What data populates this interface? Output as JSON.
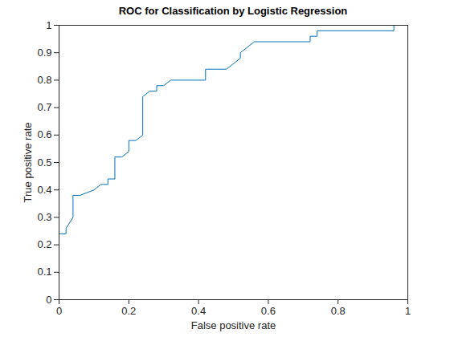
{
  "chart_data": {
    "type": "line",
    "title": "ROC for Classification by Logistic Regression",
    "x_label": "False positive rate",
    "y_label": "True positive rate",
    "x": [
      0,
      0,
      0.02,
      0.02,
      0.04,
      0.04,
      0.06,
      0.1,
      0.12,
      0.14,
      0.14,
      0.16,
      0.16,
      0.18,
      0.2,
      0.2,
      0.22,
      0.24,
      0.24,
      0.26,
      0.28,
      0.28,
      0.3,
      0.32,
      0.42,
      0.42,
      0.48,
      0.52,
      0.52,
      0.56,
      0.72,
      0.72,
      0.74,
      0.74,
      0.96,
      0.96,
      1
    ],
    "values": [
      0,
      0.24,
      0.24,
      0.26,
      0.3,
      0.38,
      0.38,
      0.4,
      0.42,
      0.42,
      0.44,
      0.44,
      0.52,
      0.52,
      0.54,
      0.58,
      0.58,
      0.6,
      0.74,
      0.76,
      0.76,
      0.78,
      0.78,
      0.8,
      0.8,
      0.84,
      0.84,
      0.88,
      0.9,
      0.94,
      0.94,
      0.96,
      0.96,
      0.98,
      0.98,
      1,
      1
    ],
    "color": "#0072bd",
    "xlim": [
      0,
      1
    ],
    "ylim": [
      0,
      1
    ],
    "xticks": [
      0,
      0.2,
      0.4,
      0.6,
      0.8,
      1
    ],
    "yticks": [
      0,
      0.1,
      0.2,
      0.3,
      0.4,
      0.5,
      0.6,
      0.7,
      0.8,
      0.9,
      1
    ]
  }
}
